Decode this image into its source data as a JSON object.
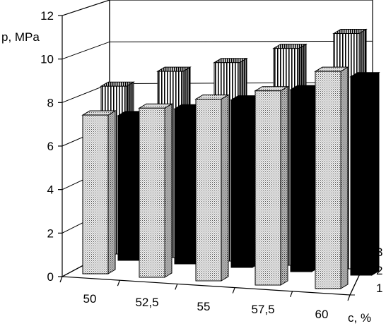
{
  "chart_data": {
    "type": "bar",
    "subtype": "3d-grouped",
    "title": "",
    "ylabel": "p, MPa",
    "xlabel": "c, %",
    "ylim": [
      0,
      12
    ],
    "yticks": [
      "0",
      "2",
      "4",
      "6",
      "8",
      "10",
      "12"
    ],
    "categories": [
      "50",
      "52,5",
      "55",
      "57,5",
      "60"
    ],
    "depth_labels": [
      "1",
      "2",
      "3"
    ],
    "series": [
      {
        "name": "1",
        "pattern": "dots",
        "values": [
          7.6,
          8.1,
          8.7,
          9.3,
          10.4
        ]
      },
      {
        "name": "2",
        "pattern": "solid-black",
        "values": [
          7.0,
          7.5,
          8.1,
          8.8,
          9.6
        ]
      },
      {
        "name": "3",
        "pattern": "vertical-stripes",
        "values": [
          8.2,
          9.1,
          9.7,
          10.6,
          11.5
        ]
      }
    ],
    "grid": true
  }
}
